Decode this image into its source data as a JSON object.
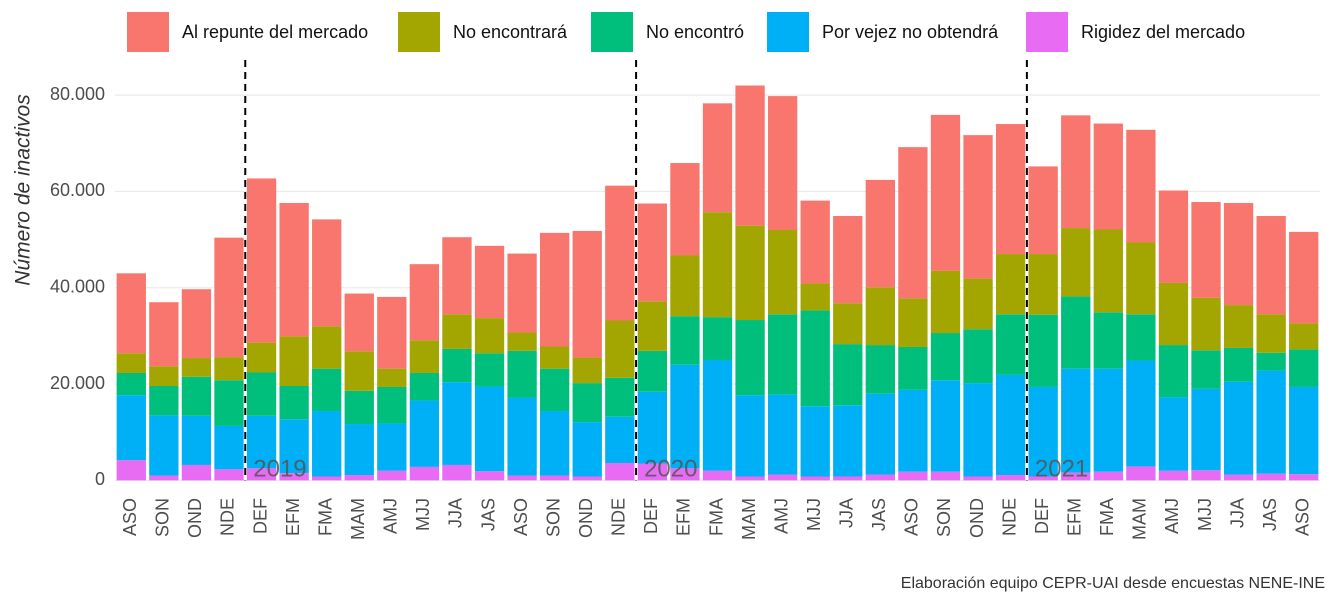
{
  "chart_data": {
    "type": "stacked_bar",
    "y_label": "Número de inactivos",
    "caption": "Elaboración equipo CEPR-UAI desde encuestas NENE-INE",
    "categories": [
      "ASO",
      "SON",
      "OND",
      "NDE",
      "DEF",
      "EFM",
      "FMA",
      "MAM",
      "AMJ",
      "MJJ",
      "JJA",
      "JAS",
      "ASO",
      "SON",
      "OND",
      "NDE",
      "DEF",
      "EFM",
      "FMA",
      "MAM",
      "AMJ",
      "MJJ",
      "JJA",
      "JAS",
      "ASO",
      "SON",
      "OND",
      "NDE",
      "DEF",
      "EFM",
      "FMA",
      "MAM",
      "AMJ",
      "MJJ",
      "JJA",
      "JAS",
      "ASO"
    ],
    "annotations": [
      "2019",
      "2020",
      "2021"
    ],
    "series": [
      {
        "name": "Al repunte del mercado",
        "color": "#F8766D",
        "values": [
          16600,
          13300,
          14300,
          24800,
          34100,
          27700,
          22200,
          12000,
          14900,
          15800,
          16000,
          15000,
          16400,
          23600,
          26300,
          28000,
          20300,
          19200,
          22600,
          29100,
          27800,
          17200,
          18100,
          22300,
          31400,
          32400,
          29800,
          27000,
          18200,
          23400,
          22000,
          23400,
          19200,
          19900,
          21200,
          20400,
          19000
        ]
      },
      {
        "name": "No encontrará",
        "color": "#A3A500",
        "values": [
          4100,
          4100,
          3900,
          4800,
          6200,
          10300,
          8800,
          8200,
          3800,
          6800,
          7200,
          7300,
          3800,
          4600,
          5300,
          11900,
          10300,
          12600,
          21800,
          19600,
          17500,
          5600,
          8500,
          12000,
          10100,
          12900,
          10500,
          12500,
          12600,
          14200,
          17200,
          14900,
          12900,
          10900,
          8900,
          8000,
          5400
        ]
      },
      {
        "name": "No encontró",
        "color": "#00BF7D",
        "values": [
          4600,
          6100,
          8100,
          9500,
          9000,
          6900,
          8800,
          6900,
          7600,
          5700,
          6900,
          6900,
          9700,
          8800,
          8100,
          8100,
          8500,
          10100,
          8900,
          15600,
          16700,
          19900,
          12700,
          10100,
          8900,
          9800,
          11200,
          12600,
          15000,
          15000,
          11700,
          9600,
          10800,
          8000,
          7000,
          3700,
          7800
        ]
      },
      {
        "name": "Por vejez no obtendrá",
        "color": "#00B0F6",
        "values": [
          13500,
          12500,
          10200,
          9000,
          10900,
          11200,
          13600,
          10600,
          9800,
          13800,
          17200,
          17600,
          16200,
          13400,
          11300,
          9600,
          14900,
          21500,
          23000,
          16900,
          16600,
          14600,
          14800,
          16800,
          17000,
          19000,
          19400,
          20800,
          18600,
          21600,
          21400,
          22000,
          15300,
          16900,
          19300,
          21400,
          18100
        ]
      },
      {
        "name": "Rigidez del mercado",
        "color": "#E76BF3",
        "values": [
          4200,
          1000,
          3200,
          2300,
          2500,
          1500,
          800,
          1100,
          2000,
          2800,
          3200,
          1900,
          1000,
          1000,
          800,
          3600,
          3500,
          2500,
          2000,
          800,
          1200,
          800,
          800,
          1200,
          1800,
          1800,
          800,
          1100,
          800,
          1600,
          1800,
          2900,
          2000,
          2100,
          1200,
          1400,
          1300
        ]
      }
    ],
    "ylim": [
      -2000,
      87300
    ],
    "yticks": [
      0,
      {
        "value": 20000,
        "label": "20.000"
      },
      {
        "value": 40000,
        "label": "40.000"
      },
      {
        "value": 60000,
        "label": "60.000"
      },
      {
        "value": 80000,
        "label": "80.000"
      }
    ],
    "grid": true,
    "legend": "top"
  }
}
